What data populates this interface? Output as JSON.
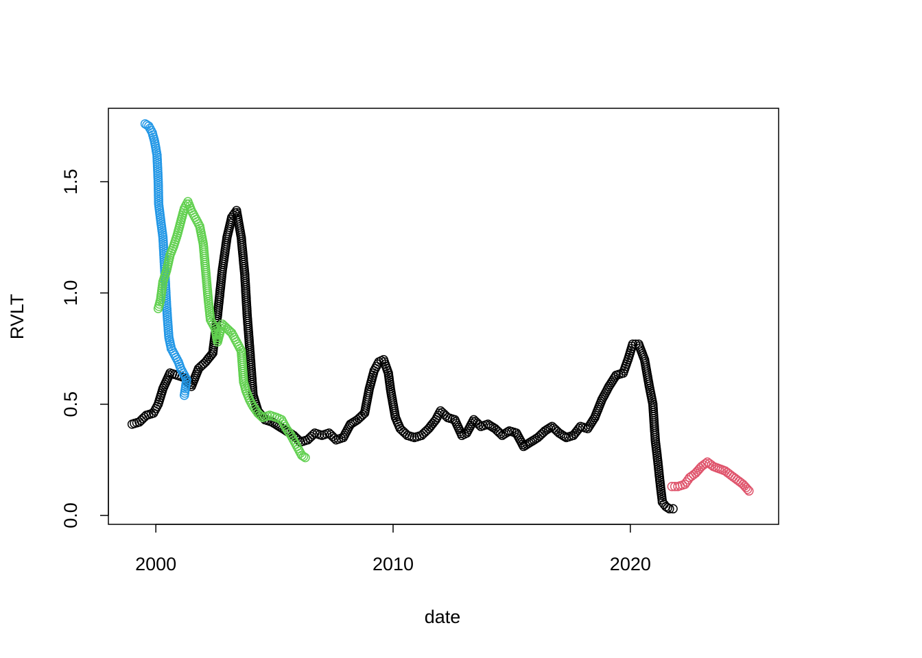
{
  "chart_data": {
    "type": "scatter",
    "xlabel": "date",
    "ylabel": "RVLT",
    "xlim": [
      1998.0,
      2026.25
    ],
    "ylim": [
      -0.04,
      1.83
    ],
    "x_ticks": [
      2000,
      2010,
      2020
    ],
    "x_tick_labels": [
      "2000",
      "2010",
      "2020"
    ],
    "y_ticks": [
      0.0,
      0.5,
      1.0,
      1.5
    ],
    "y_tick_labels": [
      "0.0",
      "0.5",
      "1.0",
      "1.5"
    ],
    "grid": false,
    "marker": "open-circle",
    "series": [
      {
        "color": "#000000",
        "points": [
          [
            1999.0,
            0.41
          ],
          [
            1999.3,
            0.42
          ],
          [
            1999.6,
            0.45
          ],
          [
            1999.9,
            0.46
          ],
          [
            2000.1,
            0.5
          ],
          [
            2000.3,
            0.57
          ],
          [
            2000.6,
            0.64
          ],
          [
            2000.9,
            0.63
          ],
          [
            2001.2,
            0.62
          ],
          [
            2001.5,
            0.58
          ],
          [
            2001.8,
            0.66
          ],
          [
            2002.1,
            0.69
          ],
          [
            2002.4,
            0.73
          ],
          [
            2002.6,
            0.9
          ],
          [
            2002.8,
            1.1
          ],
          [
            2003.0,
            1.25
          ],
          [
            2003.2,
            1.34
          ],
          [
            2003.4,
            1.37
          ],
          [
            2003.6,
            1.25
          ],
          [
            2003.75,
            1.08
          ],
          [
            2003.85,
            0.9
          ],
          [
            2003.95,
            0.76
          ],
          [
            2004.1,
            0.54
          ],
          [
            2004.3,
            0.47
          ],
          [
            2004.6,
            0.43
          ],
          [
            2004.9,
            0.42
          ],
          [
            2005.2,
            0.4
          ],
          [
            2005.5,
            0.38
          ],
          [
            2005.8,
            0.36
          ],
          [
            2006.1,
            0.33
          ],
          [
            2006.4,
            0.34
          ],
          [
            2006.7,
            0.37
          ],
          [
            2007.0,
            0.36
          ],
          [
            2007.3,
            0.37
          ],
          [
            2007.6,
            0.34
          ],
          [
            2007.9,
            0.35
          ],
          [
            2008.2,
            0.41
          ],
          [
            2008.5,
            0.43
          ],
          [
            2008.8,
            0.46
          ],
          [
            2009.0,
            0.57
          ],
          [
            2009.2,
            0.65
          ],
          [
            2009.4,
            0.69
          ],
          [
            2009.6,
            0.7
          ],
          [
            2009.8,
            0.64
          ],
          [
            2009.9,
            0.56
          ],
          [
            2010.1,
            0.44
          ],
          [
            2010.3,
            0.39
          ],
          [
            2010.6,
            0.36
          ],
          [
            2010.9,
            0.35
          ],
          [
            2011.2,
            0.36
          ],
          [
            2011.5,
            0.39
          ],
          [
            2011.8,
            0.43
          ],
          [
            2012.0,
            0.47
          ],
          [
            2012.3,
            0.44
          ],
          [
            2012.6,
            0.43
          ],
          [
            2012.9,
            0.36
          ],
          [
            2013.1,
            0.37
          ],
          [
            2013.4,
            0.43
          ],
          [
            2013.7,
            0.4
          ],
          [
            2014.0,
            0.41
          ],
          [
            2014.3,
            0.39
          ],
          [
            2014.6,
            0.36
          ],
          [
            2014.9,
            0.38
          ],
          [
            2015.2,
            0.37
          ],
          [
            2015.5,
            0.31
          ],
          [
            2015.8,
            0.33
          ],
          [
            2016.1,
            0.35
          ],
          [
            2016.4,
            0.38
          ],
          [
            2016.7,
            0.4
          ],
          [
            2017.0,
            0.37
          ],
          [
            2017.3,
            0.35
          ],
          [
            2017.6,
            0.36
          ],
          [
            2017.9,
            0.4
          ],
          [
            2018.2,
            0.39
          ],
          [
            2018.5,
            0.44
          ],
          [
            2018.8,
            0.52
          ],
          [
            2019.1,
            0.58
          ],
          [
            2019.4,
            0.63
          ],
          [
            2019.7,
            0.64
          ],
          [
            2019.9,
            0.7
          ],
          [
            2020.1,
            0.77
          ],
          [
            2020.35,
            0.77
          ],
          [
            2020.6,
            0.7
          ],
          [
            2020.8,
            0.58
          ],
          [
            2020.95,
            0.5
          ],
          [
            2021.05,
            0.34
          ],
          [
            2021.15,
            0.25
          ],
          [
            2021.25,
            0.15
          ],
          [
            2021.35,
            0.06
          ],
          [
            2021.5,
            0.04
          ],
          [
            2021.65,
            0.03
          ],
          [
            2021.8,
            0.03
          ]
        ]
      },
      {
        "color": "#2297E6",
        "points": [
          [
            1999.55,
            1.76
          ],
          [
            1999.7,
            1.75
          ],
          [
            1999.85,
            1.72
          ],
          [
            1999.95,
            1.68
          ],
          [
            2000.05,
            1.62
          ],
          [
            2000.1,
            1.5
          ],
          [
            2000.12,
            1.4
          ],
          [
            2000.2,
            1.33
          ],
          [
            2000.3,
            1.25
          ],
          [
            2000.35,
            1.15
          ],
          [
            2000.4,
            1.05
          ],
          [
            2000.45,
            0.95
          ],
          [
            2000.5,
            0.87
          ],
          [
            2000.55,
            0.8
          ],
          [
            2000.65,
            0.75
          ],
          [
            2000.8,
            0.72
          ],
          [
            2000.95,
            0.69
          ],
          [
            2001.05,
            0.66
          ],
          [
            2001.2,
            0.63
          ],
          [
            2001.3,
            0.61
          ],
          [
            2001.2,
            0.54
          ]
        ]
      },
      {
        "color": "#61D04F",
        "points": [
          [
            2000.1,
            0.93
          ],
          [
            2000.2,
            0.97
          ],
          [
            2000.3,
            1.05
          ],
          [
            2000.45,
            1.1
          ],
          [
            2000.6,
            1.17
          ],
          [
            2000.75,
            1.21
          ],
          [
            2000.9,
            1.26
          ],
          [
            2001.05,
            1.32
          ],
          [
            2001.2,
            1.38
          ],
          [
            2001.35,
            1.41
          ],
          [
            2001.5,
            1.37
          ],
          [
            2001.7,
            1.33
          ],
          [
            2001.85,
            1.3
          ],
          [
            2002.0,
            1.22
          ],
          [
            2002.1,
            1.1
          ],
          [
            2002.2,
            0.98
          ],
          [
            2002.3,
            0.88
          ],
          [
            2002.5,
            0.84
          ],
          [
            2002.6,
            0.78
          ],
          [
            2002.8,
            0.86
          ],
          [
            2003.0,
            0.84
          ],
          [
            2003.2,
            0.82
          ],
          [
            2003.4,
            0.78
          ],
          [
            2003.6,
            0.74
          ],
          [
            2003.7,
            0.6
          ],
          [
            2003.8,
            0.56
          ],
          [
            2003.95,
            0.52
          ],
          [
            2004.1,
            0.49
          ],
          [
            2004.3,
            0.46
          ],
          [
            2004.5,
            0.44
          ],
          [
            2004.8,
            0.45
          ],
          [
            2005.1,
            0.44
          ],
          [
            2005.3,
            0.43
          ],
          [
            2005.5,
            0.39
          ],
          [
            2005.7,
            0.36
          ],
          [
            2005.85,
            0.33
          ],
          [
            2006.0,
            0.3
          ],
          [
            2006.15,
            0.27
          ],
          [
            2006.3,
            0.26
          ]
        ]
      },
      {
        "color": "#DF536B",
        "points": [
          [
            2021.75,
            0.13
          ],
          [
            2022.0,
            0.13
          ],
          [
            2022.3,
            0.14
          ],
          [
            2022.5,
            0.17
          ],
          [
            2022.75,
            0.19
          ],
          [
            2023.0,
            0.22
          ],
          [
            2023.25,
            0.24
          ],
          [
            2023.5,
            0.22
          ],
          [
            2023.75,
            0.21
          ],
          [
            2024.0,
            0.2
          ],
          [
            2024.25,
            0.18
          ],
          [
            2024.5,
            0.16
          ],
          [
            2024.75,
            0.14
          ],
          [
            2025.0,
            0.11
          ]
        ]
      }
    ]
  }
}
